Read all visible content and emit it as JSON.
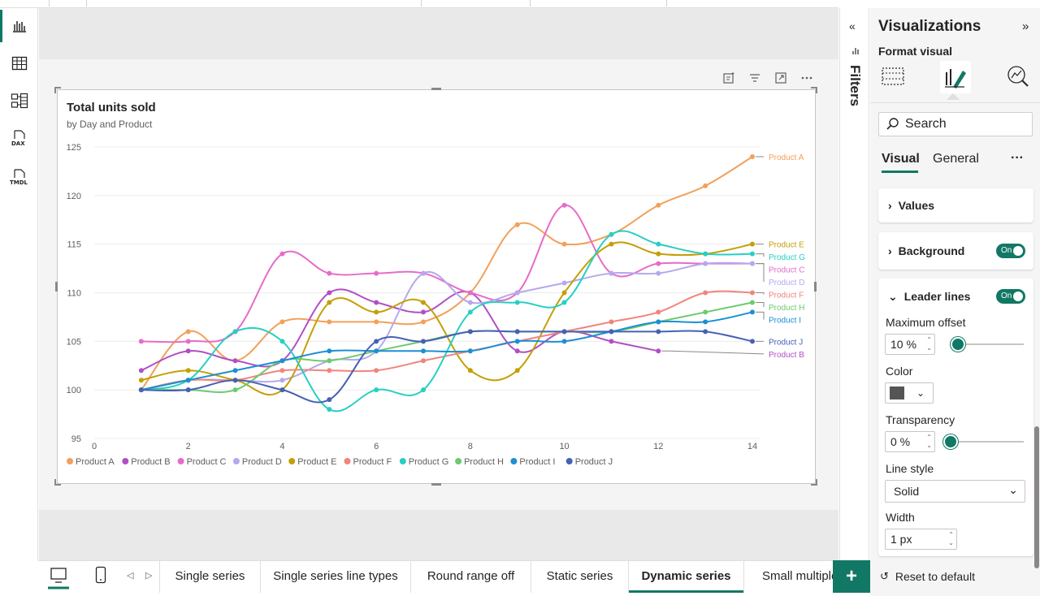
{
  "left_nav": {
    "items": [
      {
        "icon": "report-view-icon",
        "active": true
      },
      {
        "icon": "table-view-icon",
        "active": false
      },
      {
        "icon": "model-view-icon",
        "active": false
      },
      {
        "icon": "dax-query-icon",
        "text": "DAX",
        "active": false
      },
      {
        "icon": "tmdl-view-icon",
        "text": "TMDL",
        "active": false
      }
    ]
  },
  "visual": {
    "title": "Total units sold",
    "subtitle": "by Day and Product",
    "toolbar_icons": [
      "smart-narrative-icon",
      "filter-icon",
      "focus-mode-icon",
      "more-options-icon"
    ]
  },
  "chart_data": {
    "type": "line",
    "title": "Total units sold",
    "subtitle": "by Day and Product",
    "xlabel": "",
    "ylabel": "",
    "x": [
      1,
      2,
      3,
      4,
      5,
      6,
      7,
      8,
      9,
      10,
      11,
      12,
      13,
      14
    ],
    "xlim": [
      0,
      14
    ],
    "x_ticks": [
      0,
      2,
      4,
      6,
      8,
      10,
      12,
      14
    ],
    "ylim": [
      95,
      125
    ],
    "y_ticks": [
      95,
      100,
      105,
      110,
      115,
      120,
      125
    ],
    "grid": true,
    "legend": "bottom",
    "series": [
      {
        "name": "Product A",
        "color": "#F2A05A",
        "values": [
          100,
          106,
          103,
          107,
          107,
          107,
          107,
          110,
          117,
          115,
          116,
          119,
          121,
          124
        ]
      },
      {
        "name": "Product B",
        "color": "#B14FC5",
        "values": [
          102,
          104,
          103,
          103,
          110,
          109,
          108,
          110,
          104,
          106,
          105,
          104,
          null,
          null
        ]
      },
      {
        "name": "Product C",
        "color": "#E66CC8",
        "values": [
          105,
          105,
          106,
          114,
          112,
          112,
          112,
          110,
          110,
          119,
          112,
          113,
          113,
          113
        ]
      },
      {
        "name": "Product D",
        "color": "#B5A8EE",
        "values": [
          100,
          101,
          101,
          101,
          103,
          104,
          112,
          109,
          110,
          111,
          112,
          112,
          113,
          113
        ]
      },
      {
        "name": "Product E",
        "color": "#C4A006",
        "values": [
          101,
          102,
          101,
          100,
          109,
          108,
          109,
          102,
          102,
          110,
          115,
          114,
          114,
          115
        ]
      },
      {
        "name": "Product F",
        "color": "#F0857D",
        "values": [
          100,
          101,
          101,
          102,
          102,
          102,
          103,
          104,
          105,
          106,
          107,
          108,
          110,
          110
        ]
      },
      {
        "name": "Product G",
        "color": "#26CFC3",
        "values": [
          100,
          101,
          106,
          105,
          98,
          100,
          100,
          108,
          109,
          109,
          116,
          115,
          114,
          114
        ]
      },
      {
        "name": "Product H",
        "color": "#6CCB6E",
        "values": [
          100,
          100,
          100,
          103,
          103,
          104,
          105,
          106,
          106,
          106,
          106,
          107,
          108,
          109
        ]
      },
      {
        "name": "Product I",
        "color": "#1D8FD2",
        "values": [
          100,
          101,
          102,
          103,
          104,
          104,
          104,
          104,
          105,
          105,
          106,
          107,
          107,
          108
        ]
      },
      {
        "name": "Product J",
        "color": "#4661B4",
        "values": [
          100,
          100,
          101,
          100,
          99,
          105,
          105,
          106,
          106,
          106,
          106,
          106,
          106,
          105
        ]
      }
    ]
  },
  "filters": {
    "label": "Filters"
  },
  "pane": {
    "title": "Visualizations",
    "subtitle": "Format visual",
    "mode_icons": [
      "build-visual-icon",
      "format-visual-icon",
      "analytics-icon"
    ],
    "search_placeholder": "Search",
    "tabs": [
      "Visual",
      "General"
    ],
    "more_label": "···",
    "values_label": "Values",
    "background_label": "Background",
    "background_toggle": "On",
    "leader_label": "Leader lines",
    "leader_toggle": "On",
    "max_offset_label": "Maximum offset",
    "max_offset_value": "10 %",
    "max_offset_level": 0.1,
    "color_label": "Color",
    "color_value": "#555555",
    "transparency_label": "Transparency",
    "transparency_value": "0 %",
    "transparency_level": 0.0,
    "line_style_label": "Line style",
    "line_style_value": "Solid",
    "width_label": "Width",
    "width_value": "1 px",
    "reset_label": "Reset to default"
  },
  "page_tabs": {
    "items": [
      "Single series",
      "Single series line types",
      "Round range off",
      "Static series",
      "Dynamic series",
      "Small multiple"
    ],
    "active": "Dynamic series",
    "add_label": "+"
  }
}
